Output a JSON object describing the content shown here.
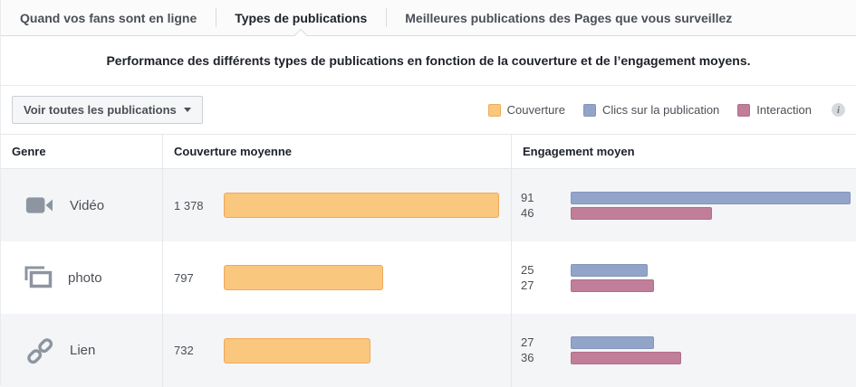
{
  "tabs": [
    {
      "label": "Quand vos fans sont en ligne",
      "active": false
    },
    {
      "label": "Types de publications",
      "active": true
    },
    {
      "label": "Meilleures publications des Pages que vous surveillez",
      "active": false
    }
  ],
  "subtitle": "Performance des différents types de publications en fonction de la couverture et de l’engagement moyens.",
  "toolbar": {
    "filter_button_label": "Voir toutes les publications",
    "legend": [
      {
        "label": "Couverture",
        "color": "#f9c77d",
        "border": "#f0ab57"
      },
      {
        "label": "Clics sur la publication",
        "color": "#92a5c8",
        "border": "#8295bd"
      },
      {
        "label": "Interaction",
        "color": "#c07e98",
        "border": "#b26e89"
      }
    ],
    "info_icon_glyph": "i"
  },
  "table": {
    "columns": [
      "Genre",
      "Couverture moyenne",
      "Engagement moyen"
    ],
    "rows": [
      {
        "genre": "Vidéo",
        "icon": "video-icon",
        "couverture_label": "1 378",
        "couverture": 1378,
        "clics": 91,
        "interaction": 46,
        "striped": true
      },
      {
        "genre": "photo",
        "icon": "photo-icon",
        "couverture_label": "797",
        "couverture": 797,
        "clics": 25,
        "interaction": 27,
        "striped": false
      },
      {
        "genre": "Lien",
        "icon": "link-icon",
        "couverture_label": "732",
        "couverture": 732,
        "clics": 27,
        "interaction": 36,
        "striped": true
      }
    ]
  },
  "chart_data": {
    "type": "bar",
    "orientation": "horizontal",
    "categories": [
      "Vidéo",
      "photo",
      "Lien"
    ],
    "series": [
      {
        "name": "Couverture",
        "values": [
          1378,
          797,
          732
        ],
        "color": "#f9c77d"
      },
      {
        "name": "Clics sur la publication",
        "values": [
          91,
          25,
          27
        ],
        "color": "#92a5c8"
      },
      {
        "name": "Interaction",
        "values": [
          46,
          27,
          36
        ],
        "color": "#c07e98"
      }
    ],
    "title": "Performance des différents types de publications en fonction de la couverture et de l’engagement moyens.",
    "xlabel": "",
    "ylabel": "Genre",
    "couverture_axis_max": 1400,
    "engagement_axis_max": 92,
    "legend_position": "top-right",
    "grid": false
  },
  "colors": {
    "icon_gray": "#8d95a0",
    "stripe_bg": "#f4f5f7",
    "accent_couverture": "#f9c77d",
    "accent_clics": "#92a5c8",
    "accent_interaction": "#c07e98"
  }
}
